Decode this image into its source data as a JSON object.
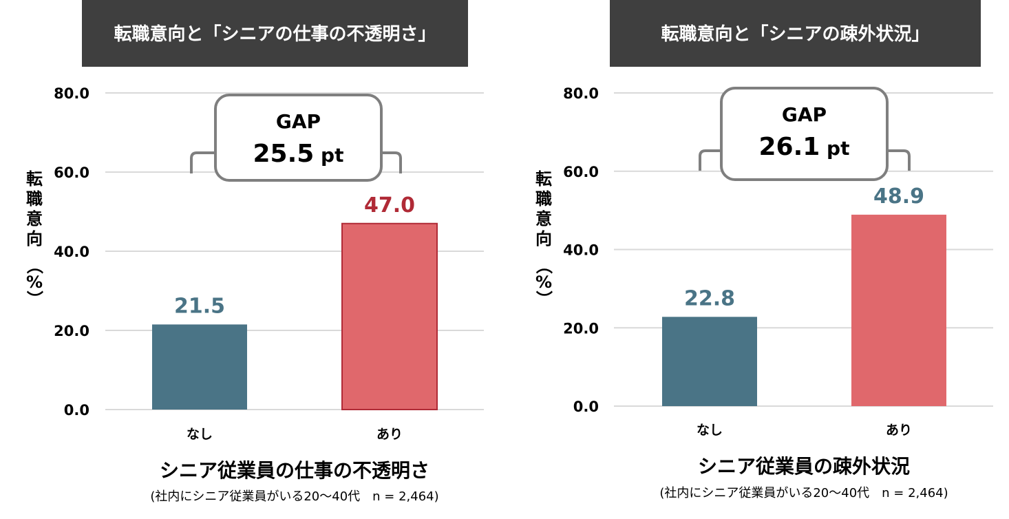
{
  "chart_data": [
    {
      "type": "bar",
      "title": "転職意向と「シニアの仕事の不透明さ」",
      "ylabel": "転職意向（%）",
      "xlabel": "シニア従業員の仕事の不透明さ",
      "note": "(社内にシニア従業員がいる20〜40代　n = 2,464)",
      "categories": [
        "なし",
        "あり"
      ],
      "values": [
        21.5,
        47.0
      ],
      "value_labels": [
        "21.5",
        "47.0"
      ],
      "yticks": [
        "0.0",
        "20.0",
        "40.0",
        "60.0",
        "80.0"
      ],
      "ylim": [
        0,
        80
      ],
      "gap_label": "GAP",
      "gap_value": "25.5",
      "gap_unit": "pt",
      "grid": true
    },
    {
      "type": "bar",
      "title": "転職意向と「シニアの疎外状況」",
      "ylabel": "転職意向（%）",
      "xlabel": "シニア従業員の疎外状況",
      "note": "(社内にシニア従業員がいる20〜40代　n = 2,464)",
      "categories": [
        "なし",
        "あり"
      ],
      "values": [
        22.8,
        48.9
      ],
      "value_labels": [
        "22.8",
        "48.9"
      ],
      "yticks": [
        "0.0",
        "20.0",
        "40.0",
        "60.0",
        "80.0"
      ],
      "ylim": [
        0,
        80
      ],
      "gap_label": "GAP",
      "gap_value": "26.1",
      "gap_unit": "pt",
      "grid": true
    }
  ],
  "colors": {
    "header_bg": "#3f3f3f",
    "header_text": "#ffffff",
    "bar_none": "#4a7486",
    "bar_yes": "#e0686c",
    "bar_yes_border": "#b02a36",
    "label_none": "#4a7486",
    "label_yes_chart1": "#b02a36",
    "label_yes_chart2": "#4a7486",
    "grid": "#d9d9d9",
    "text": "#000000",
    "bubble_border": "#7f7f7f"
  }
}
